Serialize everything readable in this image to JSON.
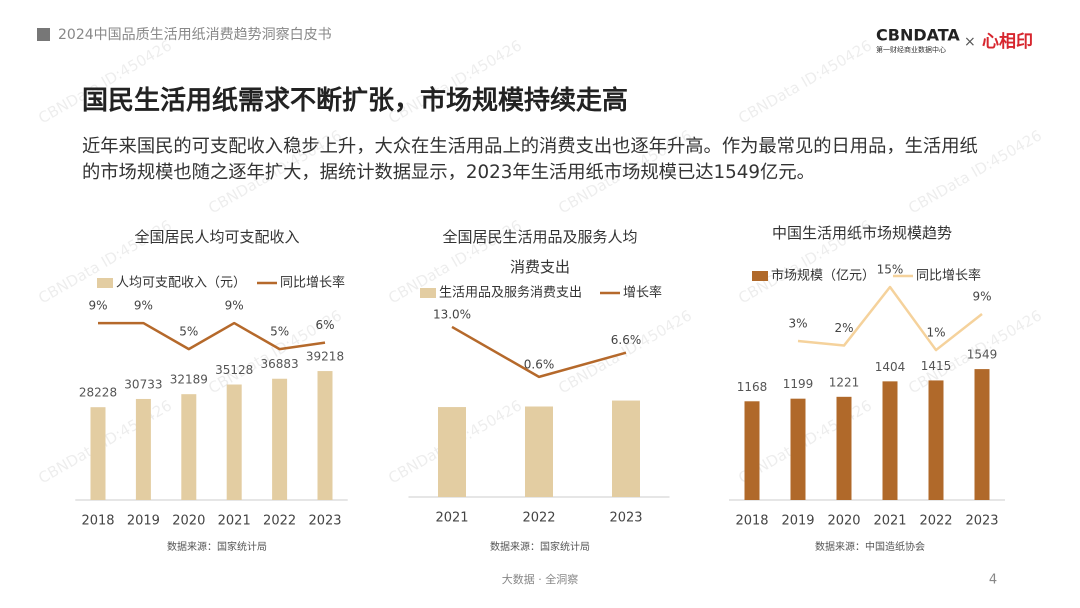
{
  "header": {
    "report": "2024中国品质生活用纸消费趋势洞察白皮书",
    "brand": "CBNDATA",
    "brand_sub": "第一财经商业数据中心",
    "times": "×",
    "partner": "心相印"
  },
  "title": "国民生活用纸需求不断扩张，市场规模持续走高",
  "body": "近年来国民的可支配收入稳步上升，大众在生活用品上的消费支出也逐年升高。作为最常见的日用品，生活用纸的市场规模也随之逐年扩大，据统计数据显示，2023年生活用纸市场规模已达1549亿元。",
  "watermark": "CBNData ID:450426",
  "chart_data": [
    {
      "type": "bar_line",
      "title": "全国居民人均可支配收入",
      "categories": [
        "2018",
        "2019",
        "2020",
        "2021",
        "2022",
        "2023"
      ],
      "series": [
        {
          "name": "人均可支配收入（元）",
          "color": "#e3cda2",
          "values": [
            28228,
            30733,
            32189,
            35128,
            36883,
            39218
          ]
        },
        {
          "name": "同比增长率",
          "color": "#b5692b",
          "axis": "y2",
          "values": [
            9,
            9,
            5,
            9,
            5,
            6
          ],
          "value_labels": [
            "9%",
            "9%",
            "5%",
            "9%",
            "5%",
            "6%"
          ]
        }
      ],
      "bar_labels": true,
      "ylim": [
        0,
        73000
      ],
      "y2lim": [
        -18.2,
        18.7
      ],
      "source": "数据来源：国家统计局"
    },
    {
      "type": "bar_line",
      "title": "全国居民生活用品及服务人均消费支出",
      "categories": [
        "2021",
        "2022",
        "2023"
      ],
      "series": [
        {
          "name": "生活用品及服务消费支出",
          "color": "#e3cda2",
          "values": [
            1423,
            1432,
            1526
          ]
        },
        {
          "name": "增长率",
          "color": "#b5692b",
          "axis": "y2",
          "values": [
            13.0,
            0.6,
            6.6
          ],
          "value_labels": [
            "13.0%",
            "0.6%",
            "6.6%"
          ]
        }
      ],
      "bar_labels": false,
      "ylim": [
        0,
        3750
      ],
      "y2lim": [
        -29.2,
        29.6
      ],
      "source": "数据来源：国家统计局"
    },
    {
      "type": "bar_line",
      "title": "中国生活用纸市场规模趋势",
      "categories": [
        "2018",
        "2019",
        "2020",
        "2021",
        "2022",
        "2023"
      ],
      "series": [
        {
          "name": "市场规模（亿元）",
          "color": "#b0692a",
          "values": [
            1168,
            1199,
            1221,
            1404,
            1415,
            1549
          ]
        },
        {
          "name": "同比增长率",
          "color": "#f5d29c",
          "axis": "y2",
          "values": [
            null,
            3,
            2,
            15,
            1,
            9
          ],
          "value_labels": [
            null,
            "3%",
            "2%",
            "15%",
            "1%",
            "9%"
          ]
        }
      ],
      "bar_labels": true,
      "ylim": [
        0,
        2840
      ],
      "y2lim": [
        -32.3,
        21
      ],
      "source": "数据来源：中国造纸协会"
    }
  ],
  "footer": {
    "tagline": "大数据 · 全洞察",
    "page": "4"
  }
}
